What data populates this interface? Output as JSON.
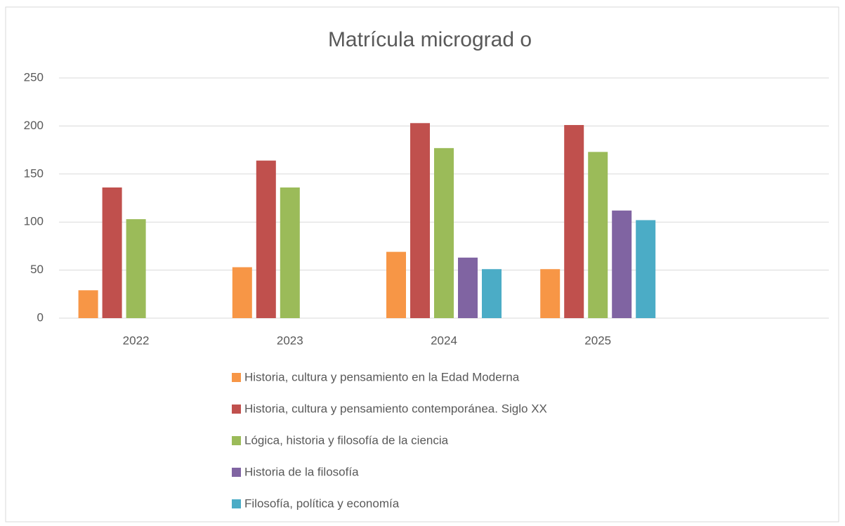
{
  "chart_data": {
    "type": "bar",
    "title": "Matrícula micrograd o",
    "categories": [
      "2022",
      "2023",
      "2024",
      "2025",
      null
    ],
    "series": [
      {
        "name": "Historia, cultura y pensamiento en la Edad Moderna",
        "color": "#f79646",
        "values": [
          29,
          53,
          69,
          51,
          null
        ]
      },
      {
        "name": "Historia, cultura y pensamiento contemporánea. Siglo XX",
        "color": "#c0504d",
        "values": [
          136,
          164,
          203,
          201,
          null
        ]
      },
      {
        "name": "Lógica, historia y filosofía de la ciencia",
        "color": "#9bbb59",
        "values": [
          103,
          136,
          177,
          173,
          null
        ]
      },
      {
        "name": "Historia de la filosofía",
        "color": "#8064a2",
        "values": [
          null,
          null,
          63,
          112,
          null
        ]
      },
      {
        "name": "Filosofía, política y economía",
        "color": "#4bacc6",
        "values": [
          null,
          null,
          51,
          102,
          null
        ]
      }
    ],
    "ylim": [
      0,
      250
    ],
    "yticks": [
      0,
      50,
      100,
      150,
      200,
      250
    ],
    "grid": true,
    "legend": "bottom"
  }
}
